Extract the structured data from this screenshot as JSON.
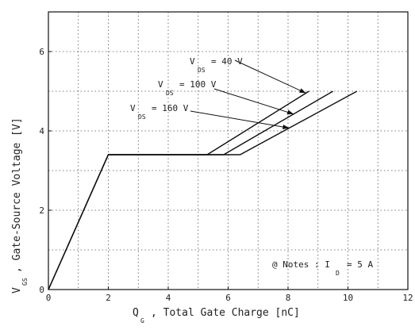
{
  "chart_data": {
    "type": "line",
    "xlabel": {
      "symbol": "Q",
      "subscript": "G",
      "text": ", Total Gate Charge  [nC]"
    },
    "ylabel": {
      "symbol": "V",
      "subscript": "GS",
      "text": ", Gate-Source Voltage  [V]"
    },
    "xlim": [
      0,
      12
    ],
    "ylim": [
      0,
      7
    ],
    "xticks": [
      "0",
      "2",
      "4",
      "6",
      "8",
      "10",
      "12"
    ],
    "yticks": [
      "0",
      "2",
      "4",
      "6"
    ],
    "minor_grid_x": [
      1,
      3,
      5,
      7,
      9,
      11
    ],
    "minor_grid_y": [
      1,
      3,
      5
    ],
    "grid": true,
    "series": [
      {
        "name": "V_DS = 40 V",
        "label": {
          "symbol": "V",
          "subscript": "DS",
          "value": "= 40 V"
        },
        "x": [
          0,
          2.0,
          5.3,
          8.7
        ],
        "y": [
          0,
          3.4,
          3.4,
          5.0
        ]
      },
      {
        "name": "V_DS = 100 V",
        "label": {
          "symbol": "V",
          "subscript": "DS",
          "value": "= 100 V"
        },
        "x": [
          0,
          2.0,
          5.85,
          9.5
        ],
        "y": [
          0,
          3.4,
          3.4,
          5.0
        ]
      },
      {
        "name": "V_DS = 160 V",
        "label": {
          "symbol": "V",
          "subscript": "DS",
          "value": "= 160 V"
        },
        "x": [
          0,
          2.0,
          6.4,
          10.3
        ],
        "y": [
          0,
          3.4,
          3.4,
          5.0
        ]
      }
    ],
    "note": {
      "prefix": "@ Notes : I",
      "subscript": "D",
      "suffix": "= 5 A"
    }
  }
}
